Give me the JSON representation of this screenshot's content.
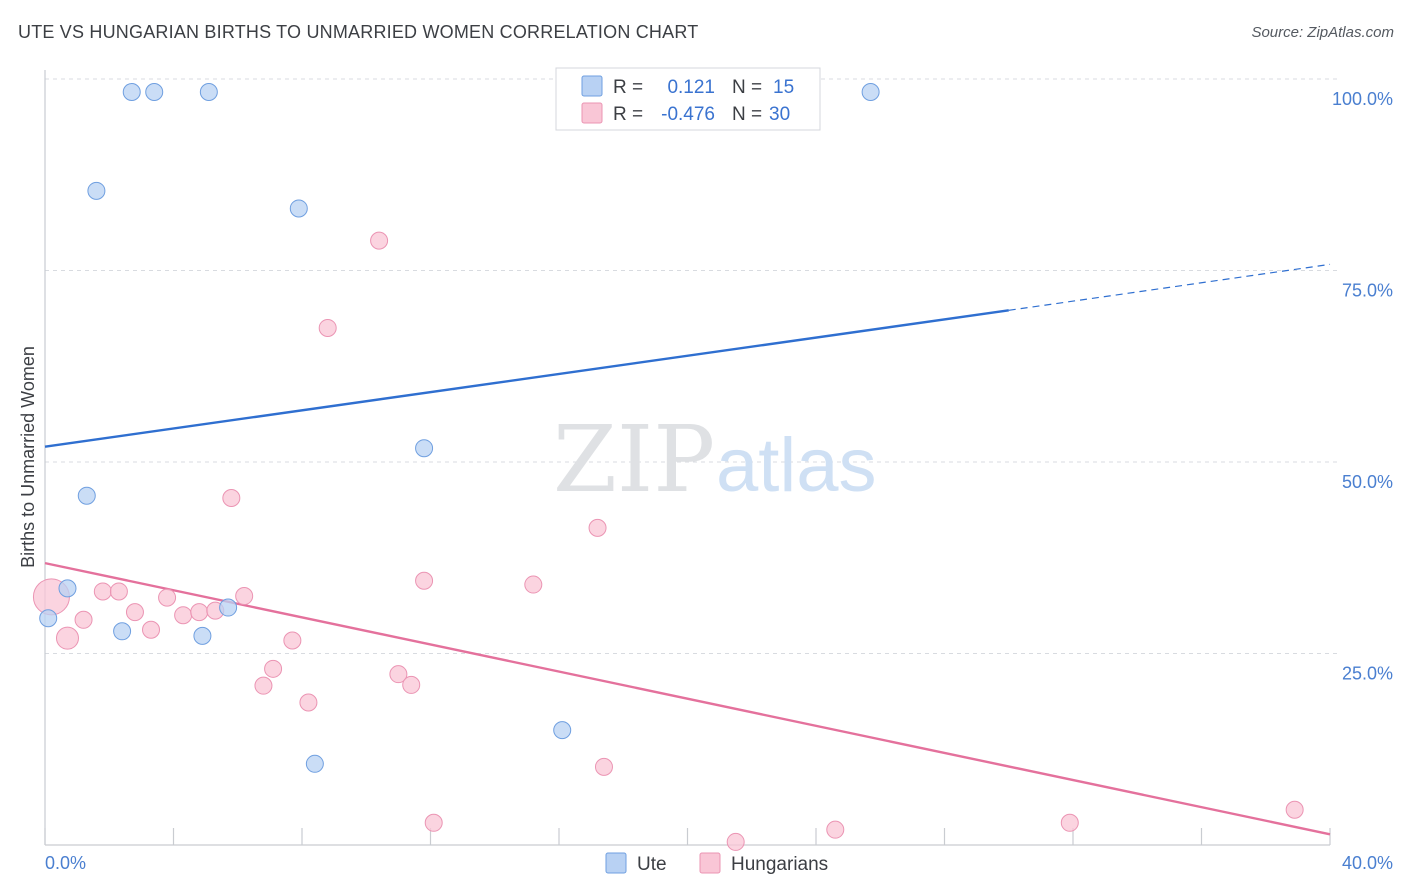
{
  "title": "UTE VS HUNGARIAN BIRTHS TO UNMARRIED WOMEN CORRELATION CHART",
  "source": "Source: ZipAtlas.com",
  "watermark": {
    "zip": "ZIP",
    "atlas": "atlas"
  },
  "colors": {
    "ute_fill": "#b8d1f3",
    "ute_stroke": "#6f9fe0",
    "ute_line": "#2f6fd0",
    "hun_fill": "#f9c6d6",
    "hun_stroke": "#eb94b3",
    "hun_line": "#e4719c",
    "tick_label": "#4a7fd0",
    "grid": "#d8dbe0"
  },
  "legend_top": [
    {
      "series": "Ute",
      "r_label": "R =",
      "r_value": "0.121",
      "n_label": "N =",
      "n_value": "15"
    },
    {
      "series": "Hungarians",
      "r_label": "R =",
      "r_value": "-0.476",
      "n_label": "N =",
      "n_value": "30"
    }
  ],
  "legend_bottom": [
    "Ute",
    "Hungarians"
  ],
  "chart_data": {
    "type": "scatter",
    "title": "UTE VS HUNGARIAN BIRTHS TO UNMARRIED WOMEN CORRELATION CHART",
    "xlabel": "",
    "ylabel": "Births to Unmarried Women",
    "xlim": [
      0,
      40
    ],
    "ylim": [
      0,
      100
    ],
    "x_tick_labels": [
      "0.0%",
      "40.0%"
    ],
    "y_ticks": [
      25,
      50,
      75,
      100
    ],
    "y_tick_labels": [
      "25.0%",
      "50.0%",
      "75.0%",
      "100.0%"
    ],
    "grid": true,
    "series": [
      {
        "name": "Ute",
        "r": 0.121,
        "n": 15,
        "points": [
          [
            0.1,
            29.6
          ],
          [
            0.7,
            33.5
          ],
          [
            1.3,
            45.6
          ],
          [
            1.6,
            85.4
          ],
          [
            2.4,
            27.9
          ],
          [
            2.7,
            98.3
          ],
          [
            3.4,
            98.3
          ],
          [
            4.9,
            27.3
          ],
          [
            5.1,
            98.3
          ],
          [
            5.7,
            31.0
          ],
          [
            7.9,
            83.1
          ],
          [
            8.4,
            10.6
          ],
          [
            11.8,
            51.8
          ],
          [
            16.1,
            15.0
          ],
          [
            25.7,
            98.3
          ]
        ],
        "trend": {
          "x0": 0,
          "y0": 52.0,
          "x1": 30,
          "y1": 69.8,
          "dash_to_x": 40,
          "dash_to_y": 75.8
        }
      },
      {
        "name": "Hungarians",
        "r": -0.476,
        "n": 30,
        "points": [
          [
            0.2,
            32.4
          ],
          [
            0.7,
            27.0
          ],
          [
            1.2,
            29.4
          ],
          [
            1.8,
            33.1
          ],
          [
            2.3,
            33.1
          ],
          [
            2.8,
            30.4
          ],
          [
            3.3,
            28.1
          ],
          [
            3.8,
            32.3
          ],
          [
            4.3,
            30.0
          ],
          [
            4.8,
            30.4
          ],
          [
            5.3,
            30.6
          ],
          [
            5.8,
            45.3
          ],
          [
            6.2,
            32.5
          ],
          [
            6.8,
            20.8
          ],
          [
            7.1,
            23.0
          ],
          [
            7.7,
            26.7
          ],
          [
            8.2,
            18.6
          ],
          [
            8.8,
            67.5
          ],
          [
            10.4,
            78.9
          ],
          [
            11.0,
            22.3
          ],
          [
            11.4,
            20.9
          ],
          [
            11.8,
            34.5
          ],
          [
            12.1,
            2.9
          ],
          [
            15.2,
            34.0
          ],
          [
            17.2,
            41.4
          ],
          [
            17.4,
            10.2
          ],
          [
            21.5,
            0.4
          ],
          [
            24.6,
            2.0
          ],
          [
            31.9,
            2.9
          ],
          [
            38.9,
            4.6
          ]
        ],
        "trend": {
          "x0": 0,
          "y0": 36.8,
          "x1": 40,
          "y1": 1.4
        }
      }
    ]
  }
}
